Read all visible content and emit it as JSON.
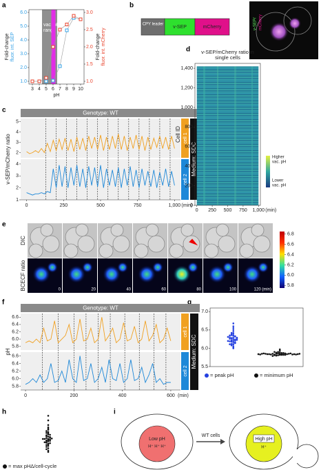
{
  "panel_labels": [
    "a",
    "b",
    "c",
    "d",
    "e",
    "f",
    "g",
    "h",
    "i"
  ],
  "chart_data": [
    {
      "type": "pointline",
      "x": [
        3,
        4,
        5,
        6,
        7,
        8,
        9,
        10
      ],
      "xlabel": "pH",
      "xlim": [
        2.5,
        10.5
      ],
      "xticks": [
        3,
        4,
        5,
        6,
        7,
        8,
        9,
        10
      ],
      "ylim": [
        0.8,
        6.2
      ],
      "yticks": [
        {
          "value": 1,
          "label": "1.0"
        },
        {
          "value": 2,
          "label": "2.0"
        },
        {
          "value": 3,
          "label": "3.0"
        },
        {
          "value": 4,
          "label": "4.0"
        },
        {
          "value": 5,
          "label": "5.0"
        },
        {
          "value": 6,
          "label": "6.0"
        }
      ],
      "ylabel": [
        "Fold-change",
        "fluor. int. SEP"
      ],
      "y2lim": [
        0.92,
        3.08
      ],
      "y2ticks": [
        {
          "value": 1,
          "label": "1.0"
        },
        1.5,
        {
          "value": 2,
          "label": "2.0"
        },
        2.5,
        {
          "value": 3,
          "label": "3.0"
        }
      ],
      "y2label": [
        "Fold-change",
        "fluor. int. mCherry"
      ],
      "regions": [
        {
          "label_lines": [
            "vac. pH",
            "range"
          ],
          "xlim": [
            4.4,
            6.6
          ],
          "color": "#8f8f8f"
        },
        {
          "xlim": [
            5.75,
            6.35
          ],
          "color": "#e22de6"
        }
      ],
      "series": [
        {
          "color": "#33a0e6",
          "values": [
            1.0,
            1.0,
            1.0,
            1.05,
            2.1,
            4.7,
            5.6,
            5.5
          ]
        },
        {
          "color": "#e8432c",
          "axis": "y2",
          "values": [
            1.0,
            1.0,
            1.1,
            2.0,
            2.5,
            2.65,
            2.9,
            2.8
          ]
        }
      ]
    },
    {
      "type": "timeline",
      "title": "Genotype: WT",
      "ylabel": "v-SEP/mCherry ratio",
      "xlabel": "(min)",
      "medium": "Medium: SDC",
      "xlim": [
        -40,
        1040
      ],
      "xticks": [
        0,
        250,
        500,
        750,
        {
          "value": 1000,
          "label": "1,000"
        }
      ],
      "events": [
        130,
        200,
        270,
        340,
        410,
        480,
        550,
        620,
        690,
        760,
        830,
        900,
        970
      ],
      "x": [
        0,
        20,
        40,
        60,
        80,
        100,
        120,
        140,
        160,
        180,
        200,
        220,
        240,
        260,
        280,
        300,
        320,
        340,
        360,
        380,
        400,
        420,
        440,
        460,
        480,
        500,
        520,
        540,
        560,
        580,
        600,
        620,
        640,
        660,
        680,
        700,
        720,
        740,
        760,
        780,
        800,
        820,
        840,
        860,
        880,
        900,
        920,
        940,
        960,
        980,
        1000
      ],
      "subplots": [
        {
          "label": "cell 1",
          "color": "#f0a020",
          "ylim": [
            1.5,
            5.3
          ],
          "yticks": [
            2,
            3,
            4,
            5
          ],
          "values": [
            2.1,
            1.9,
            2.0,
            2.2,
            2.0,
            2.4,
            2.0,
            2.9,
            2.1,
            3.2,
            2.2,
            3.3,
            2.3,
            3.4,
            2.2,
            3.3,
            2.1,
            3.5,
            2.3,
            3.4,
            2.2,
            3.6,
            2.4,
            3.5,
            2.3,
            3.7,
            2.2,
            3.5,
            2.3,
            3.6,
            2.4,
            3.8,
            2.3,
            3.6,
            2.2,
            3.5,
            2.4,
            3.7,
            2.3,
            3.6,
            2.2,
            3.5,
            2.3,
            3.4,
            2.5,
            3.6,
            2.4,
            3.5,
            2.3,
            3.6,
            2.4
          ]
        },
        {
          "label": "cell 2",
          "color": "#1e88d8",
          "ylim": [
            1,
            4.4
          ],
          "yticks": [
            1,
            2,
            3,
            4
          ],
          "values": [
            1.6,
            1.5,
            1.4,
            1.5,
            1.5,
            1.6,
            1.5,
            1.7,
            1.6,
            3.6,
            2.0,
            3.9,
            2.1,
            3.8,
            2.0,
            3.7,
            2.2,
            3.9,
            2.1,
            3.6,
            2.0,
            3.8,
            2.2,
            3.7,
            2.1,
            3.9,
            2.0,
            3.6,
            2.2,
            3.5,
            2.1,
            3.7,
            2.0,
            3.6,
            2.2,
            3.8,
            2.1,
            3.5,
            2.0,
            3.6,
            2.2,
            3.4,
            2.1,
            3.5,
            2.0,
            3.3,
            2.2,
            3.6,
            2.1,
            3.4,
            2.2
          ]
        }
      ]
    },
    {
      "type": "heatmap",
      "title": [
        "v-SEP/mCherry ratio in",
        "single cells"
      ],
      "ylabel": "Cell ID",
      "xlabel": "(min)",
      "xlim": [
        -30,
        1030
      ],
      "xticks": [
        0,
        250,
        500,
        750,
        {
          "value": 1000,
          "label": "1,000"
        }
      ],
      "ylim": [
        0,
        1450
      ],
      "yticks": [
        0,
        200,
        400,
        600,
        800,
        {
          "value": 1000,
          "label": "1,000"
        },
        {
          "value": 1200,
          "label": "1,200"
        },
        {
          "value": 1400,
          "label": "1,400"
        }
      ],
      "colorbar_labels": [
        [
          "Higher",
          "vac. pH"
        ],
        [
          "Lower",
          "vac. pH"
        ]
      ]
    },
    {
      "type": "timeline",
      "title": "Genotype: WT",
      "ylabel": "pH",
      "xlabel": "(min)",
      "medium": "Medium: SDC",
      "xlim": [
        -20,
        640
      ],
      "xticks": [
        0,
        200,
        400,
        600
      ],
      "events": [
        70,
        135,
        200,
        250,
        300,
        350,
        410,
        470,
        530,
        580
      ],
      "x": [
        0,
        15,
        30,
        45,
        60,
        75,
        90,
        105,
        120,
        135,
        150,
        165,
        180,
        195,
        210,
        225,
        240,
        255,
        270,
        285,
        300,
        315,
        330,
        345,
        360,
        375,
        390,
        405,
        420,
        435,
        450,
        465,
        480,
        495,
        510,
        525,
        540,
        555,
        570,
        585,
        600
      ],
      "subplots": [
        {
          "label": "cell 1",
          "color": "#f0a020",
          "ylim": [
            5.7,
            6.7
          ],
          "yticks": [
            5.8,
            {
              "value": 6,
              "label": "6.0"
            },
            6.2,
            6.4,
            6.6
          ],
          "values": [
            5.9,
            5.95,
            5.9,
            6.0,
            5.9,
            6.3,
            5.95,
            6.0,
            6.5,
            5.9,
            6.0,
            6.1,
            6.4,
            5.9,
            6.0,
            6.55,
            5.95,
            6.0,
            6.3,
            5.9,
            6.0,
            6.6,
            5.95,
            6.1,
            6.3,
            5.9,
            6.0,
            6.45,
            5.95,
            6.0,
            6.35,
            5.9,
            6.0,
            6.5,
            5.95,
            6.1,
            6.4,
            5.9,
            6.0,
            6.3,
            5.95
          ]
        },
        {
          "label": "cell 2",
          "color": "#1e88d8",
          "ylim": [
            5.7,
            6.7
          ],
          "yticks": [
            5.8,
            {
              "value": 6,
              "label": "6.0"
            },
            6.2,
            6.4,
            6.6
          ],
          "values": [
            5.85,
            5.9,
            6.0,
            5.9,
            6.1,
            5.9,
            6.0,
            6.4,
            5.9,
            5.95,
            6.2,
            5.9,
            6.5,
            6.0,
            5.9,
            6.6,
            5.95,
            6.0,
            6.4,
            5.9,
            6.0,
            6.3,
            5.9,
            6.5,
            6.0,
            5.95,
            6.4,
            5.9,
            6.0,
            6.5,
            5.95,
            6.0,
            6.3,
            5.9,
            6.1,
            6.4,
            5.9,
            6.0,
            5.85,
            5.9,
            5.9
          ]
        }
      ]
    },
    {
      "type": "swarm",
      "ylabel": "pH",
      "ylim": [
        5.5,
        7.1
      ],
      "yticks": [
        5.5,
        {
          "value": 6,
          "label": "6.0"
        },
        6.5,
        {
          "value": 7,
          "label": "7.0"
        }
      ],
      "series": [
        {
          "name": "= peak pH",
          "color": "#2440e0",
          "values": [
            6.25,
            6.3,
            6.2,
            6.35,
            6.15,
            6.28,
            6.4,
            6.1,
            6.22,
            6.32,
            6.18,
            6.45,
            6.05,
            6.27,
            6.36,
            6.12,
            6.24,
            6.5,
            6.0,
            6.3,
            6.21,
            6.38,
            6.14,
            6.26,
            6.6,
            6.08,
            6.33,
            6.19,
            6.29,
            6.42,
            6.16,
            6.23,
            6.68,
            6.02,
            6.31,
            6.2,
            6.35,
            6.11,
            6.27,
            6.55
          ]
        },
        {
          "name": "= minimum pH",
          "color": "#111111",
          "values": [
            5.84,
            5.82,
            5.86,
            5.83,
            5.85,
            5.81,
            5.88,
            5.84,
            5.83,
            5.86,
            5.82,
            5.9,
            5.85,
            5.84,
            5.8,
            5.87,
            5.83,
            5.85,
            5.84,
            5.93,
            5.82,
            5.86,
            5.84,
            5.83,
            5.88,
            5.85,
            5.81,
            5.84,
            5.86,
            5.83,
            5.97,
            5.85,
            5.82,
            5.84,
            5.87,
            5.83,
            5.79,
            5.85,
            5.84,
            5.9
          ]
        }
      ]
    },
    {
      "type": "swarm",
      "ylim": [
        0.1,
        1.05
      ],
      "series": [
        {
          "name": "= max pHΔ/cell-cycle",
          "color": "#111111",
          "values": [
            0.5,
            0.45,
            0.55,
            0.4,
            0.6,
            0.48,
            0.52,
            0.35,
            0.65,
            0.42,
            0.58,
            0.3,
            0.7,
            0.47,
            0.53,
            0.38,
            0.62,
            0.25,
            0.75,
            0.5,
            0.44,
            0.56,
            0.33,
            0.67,
            0.49,
            0.51,
            0.8,
            0.41,
            0.59,
            0.28,
            0.72,
            0.46,
            0.54,
            0.9,
            0.37,
            0.63,
            0.5,
            0.22,
            1.0,
            0.43
          ]
        }
      ]
    }
  ],
  "construct": {
    "boxes": [
      "CPY leader",
      "v-SEP",
      "mCherry"
    ],
    "image_labels": [
      "v-SEP/",
      "mCherry"
    ]
  },
  "microscopy": {
    "rows": [
      "DIC",
      "BCECF ratio"
    ],
    "times": [
      "0",
      "20",
      "40",
      "60",
      "80",
      "100",
      "120 (min)"
    ],
    "colorbar": {
      "lim": [
        5.75,
        6.85
      ],
      "ticks": [
        5.8,
        {
          "value": 6,
          "label": "6.0"
        },
        6.2,
        6.4,
        6.6,
        6.8
      ]
    }
  },
  "model": {
    "title": "WT cells",
    "left": {
      "label": "Low pH",
      "ions": "H⁺ H⁺ H⁺"
    },
    "right": {
      "label": "High pH",
      "ions": "H⁺"
    }
  }
}
